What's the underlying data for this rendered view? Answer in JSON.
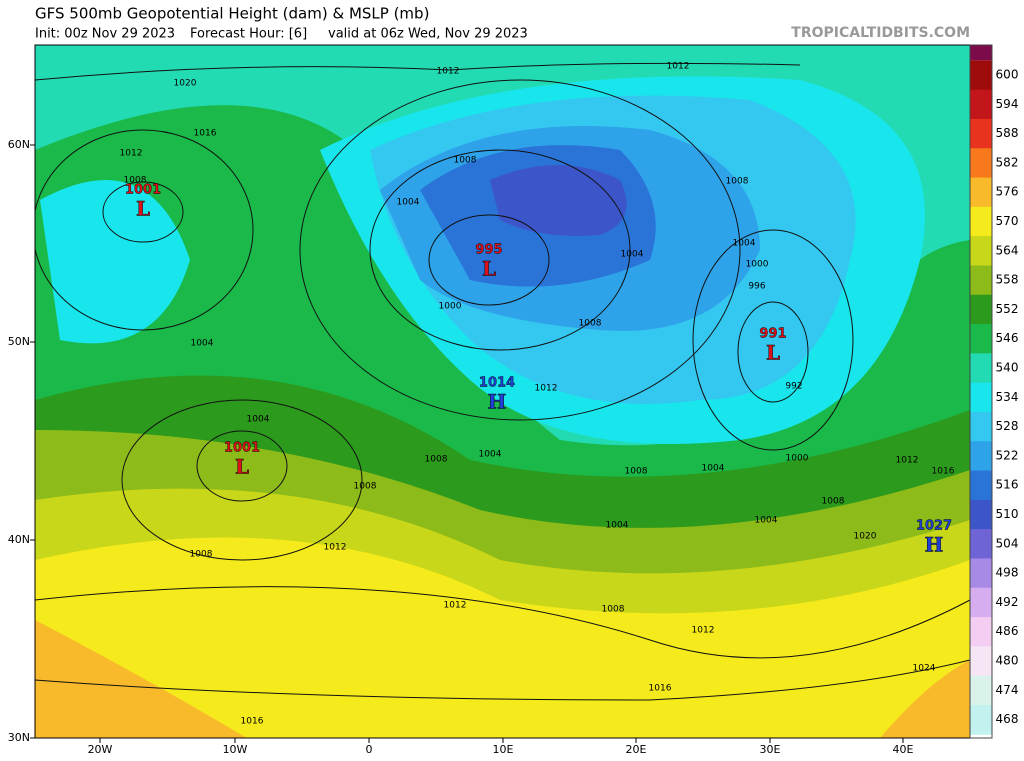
{
  "header": {
    "title": "GFS 500mb Geopotential Height (dam) & MSLP (mb)",
    "init": "Init: 00z Nov 29 2023",
    "forecast_hour": "Forecast Hour: [6]",
    "valid": "valid at 06z Wed, Nov 29 2023",
    "source": "TROPICALTIDBITS.COM"
  },
  "colorbar": {
    "labels": [
      "600",
      "594",
      "588",
      "582",
      "576",
      "570",
      "564",
      "558",
      "552",
      "546",
      "540",
      "534",
      "528",
      "522",
      "516",
      "510",
      "504",
      "498",
      "492",
      "486",
      "480",
      "474",
      "468"
    ],
    "colors": [
      "#9e0b0b",
      "#c3161a",
      "#e8341e",
      "#f7791c",
      "#f8b92a",
      "#f5ea1c",
      "#c8d719",
      "#8dbb19",
      "#2c9a1c",
      "#1ab94a",
      "#23dbb3",
      "#19e6ec",
      "#34c8f0",
      "#2ea3ea",
      "#2a74d8",
      "#3c56c9",
      "#6f64d6",
      "#a68ae6",
      "#d6aef0",
      "#f3cdf2",
      "#f5e5f5",
      "#d9f3ea",
      "#c1f2f0"
    ],
    "top_color": "#7c0b4c"
  },
  "axes": {
    "lat": [
      "60N",
      "50N",
      "40N",
      "30N"
    ],
    "lon": [
      "20W",
      "10W",
      "0",
      "10E",
      "20E",
      "30E",
      "40E"
    ]
  },
  "centers": [
    {
      "kind": "L",
      "value": "1001"
    },
    {
      "kind": "L",
      "value": "995"
    },
    {
      "kind": "L",
      "value": "991"
    },
    {
      "kind": "L",
      "value": "1001"
    },
    {
      "kind": "H",
      "value": "1014"
    },
    {
      "kind": "H",
      "value": "1027"
    }
  ],
  "isobar_labels": [
    "1020",
    "1016",
    "1012",
    "1008",
    "1004",
    "1004",
    "1012",
    "1012",
    "1008",
    "1004",
    "1000",
    "1008",
    "1004",
    "1004",
    "1000",
    "996",
    "992",
    "1008",
    "1012",
    "1008",
    "1004",
    "1008",
    "1008",
    "1012",
    "1008",
    "1004",
    "1000",
    "1004",
    "1004",
    "1008",
    "1020",
    "1012",
    "1016",
    "1008",
    "1012",
    "1012",
    "1016",
    "1016",
    "1024"
  ]
}
